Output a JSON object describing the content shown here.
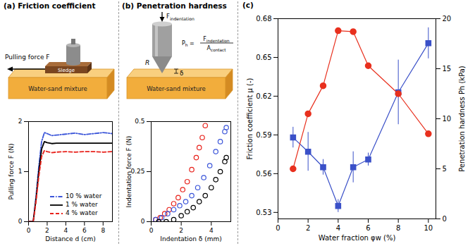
{
  "chart_data": [
    {
      "type": "line",
      "title": "(a) Friction coefficient",
      "annotations": {
        "pulling_force": "Pulling force F",
        "sledge": "Sledge",
        "mixture": "Water-sand mixture"
      },
      "x_label": "Distance d (cm)",
      "y_label": "Pulling force F (N)",
      "xlim": [
        0,
        9
      ],
      "xticks": [
        0,
        2,
        4,
        6,
        8
      ],
      "ylim": [
        0,
        2
      ],
      "yticks": [
        0,
        1,
        2
      ],
      "legend": "lower right",
      "x": [
        0,
        0.5,
        0.8,
        1.1,
        1.4,
        1.7,
        2,
        2.5,
        3,
        4,
        5,
        6,
        7,
        8,
        9
      ],
      "series": [
        {
          "name": "10 % water",
          "color": "#3b55d9",
          "line_style": "dashdot",
          "values": [
            0,
            0,
            0.5,
            1.1,
            1.6,
            1.78,
            1.76,
            1.72,
            1.73,
            1.75,
            1.77,
            1.74,
            1.76,
            1.78,
            1.76
          ]
        },
        {
          "name": "1 % water",
          "color": "#000000",
          "line_style": "solid",
          "values": [
            0,
            0,
            0.45,
            1.0,
            1.45,
            1.6,
            1.58,
            1.56,
            1.57,
            1.57,
            1.57,
            1.57,
            1.57,
            1.57,
            1.57
          ]
        },
        {
          "name": "4 % water",
          "color": "#e8211b",
          "line_style": "dashed",
          "values": [
            0,
            0,
            0.4,
            0.9,
            1.3,
            1.42,
            1.4,
            1.38,
            1.39,
            1.4,
            1.39,
            1.4,
            1.4,
            1.39,
            1.4
          ]
        }
      ]
    },
    {
      "type": "scatter",
      "title": "(b) Penetration hardness",
      "annotations": {
        "force_label": {
          "text": "F",
          "subscript": "indentation"
        },
        "formula": {
          "lhs": {
            "text": "P",
            "subscript": "h"
          },
          "equals": "=",
          "numerator": {
            "text": "F",
            "subscript": "indentation"
          },
          "denominator": {
            "text": "A",
            "subscript": "contact"
          }
        },
        "radius": "R",
        "depth": "δ",
        "mixture": "Water-sand mixture"
      },
      "x_label": "Indentation δ (mm)",
      "y_label": "Indentation force F (N)",
      "xlim": [
        0,
        5.3
      ],
      "xticks": [
        0,
        2,
        4
      ],
      "ylim": [
        0,
        0.5
      ],
      "yticks": [
        0,
        0.25,
        0.5
      ],
      "marker": "open circle",
      "series": [
        {
          "color": "#e8211b",
          "x": [
            0.3,
            0.6,
            0.9,
            1.2,
            1.5,
            1.8,
            2.1,
            2.4,
            2.7,
            3.0,
            3.2,
            3.4,
            3.6
          ],
          "values": [
            0.01,
            0.02,
            0.04,
            0.06,
            0.09,
            0.12,
            0.16,
            0.2,
            0.26,
            0.32,
            0.37,
            0.42,
            0.48
          ]
        },
        {
          "color": "#3b55d9",
          "x": [
            0.3,
            0.7,
            1.1,
            1.5,
            1.9,
            2.3,
            2.7,
            3.1,
            3.5,
            3.9,
            4.3,
            4.6,
            4.9,
            5.0
          ],
          "values": [
            0.01,
            0.02,
            0.04,
            0.06,
            0.08,
            0.1,
            0.13,
            0.17,
            0.22,
            0.28,
            0.35,
            0.4,
            0.45,
            0.47
          ]
        },
        {
          "color": "#000000",
          "x": [
            0.5,
            1.0,
            1.5,
            2.0,
            2.4,
            2.8,
            3.2,
            3.6,
            4.0,
            4.3,
            4.6,
            4.9,
            5.0
          ],
          "values": [
            0,
            0,
            0.01,
            0.03,
            0.05,
            0.07,
            0.1,
            0.13,
            0.17,
            0.21,
            0.25,
            0.3,
            0.32
          ]
        }
      ]
    },
    {
      "type": "line",
      "title": "(c)",
      "x_label": "Water fraction φw (%)",
      "y_label": "Friction coefficient μ (-)",
      "y2_label": "Penetration hardness Ph (kPa)",
      "xlim": [
        0,
        10.5
      ],
      "xticks": [
        0,
        2,
        4,
        6,
        8,
        10
      ],
      "ylim": [
        0.525,
        0.68
      ],
      "yticks": [
        0.53,
        0.56,
        0.59,
        0.62,
        0.65,
        0.68
      ],
      "y2lim": [
        0,
        20
      ],
      "y2ticks": [
        0,
        5,
        10,
        15,
        20
      ],
      "x": [
        1,
        2,
        3,
        4,
        5,
        6,
        8,
        10
      ],
      "series": [
        {
          "color": "#3a50c8",
          "marker": "square",
          "values": [
            0.588,
            0.577,
            0.565,
            0.535,
            0.565,
            0.571,
            0.623,
            0.661
          ],
          "errors": [
            0.008,
            0.015,
            0.006,
            0.005,
            0.012,
            0.005,
            0.025,
            0.012
          ]
        },
        {
          "color": "#e8301e",
          "marker": "circle",
          "axis": "y2",
          "values": [
            5,
            10.5,
            13.3,
            18.8,
            18.7,
            15.3,
            12.5,
            8.5
          ]
        }
      ]
    }
  ]
}
